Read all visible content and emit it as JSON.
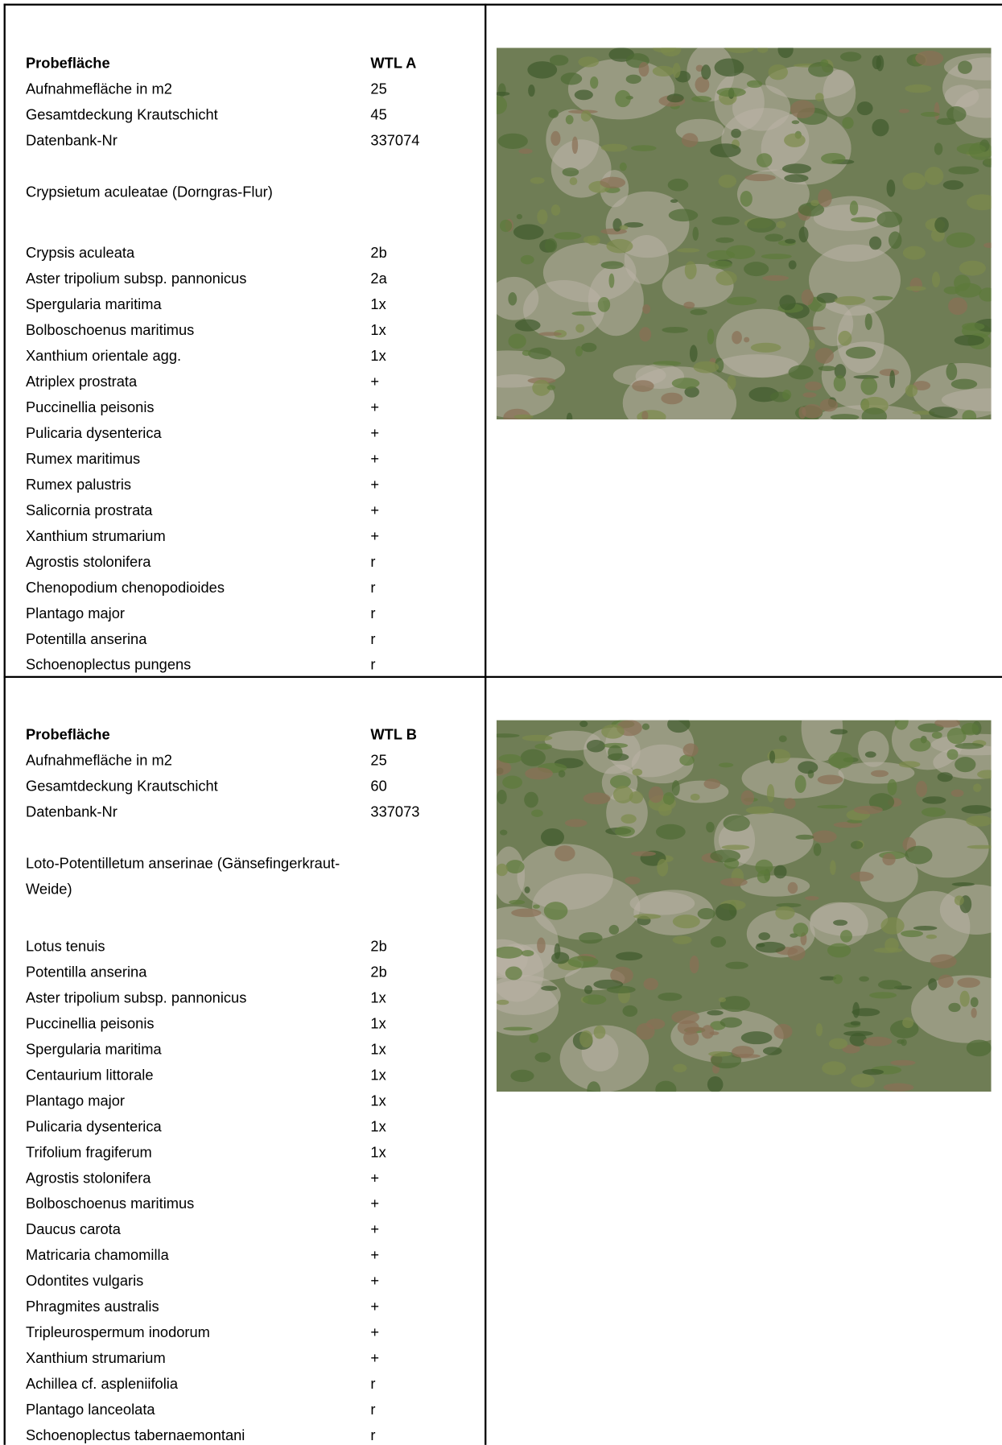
{
  "sections": [
    {
      "header": {
        "label": "Probefläche",
        "value": "WTL A"
      },
      "fields": [
        {
          "label": "Aufnahmefläche in m2",
          "value": "25"
        },
        {
          "label": "Gesamtdeckung Krautschicht",
          "value": "45"
        },
        {
          "label": "Datenbank-Nr",
          "value": "337074"
        }
      ],
      "community": "Crypsietum aculeatae (Dorngras-Flur)",
      "species": [
        {
          "name": "Crypsis aculeata",
          "cover": "2b"
        },
        {
          "name": "Aster tripolium subsp. pannonicus",
          "cover": "2a"
        },
        {
          "name": "Spergularia maritima",
          "cover": "1x"
        },
        {
          "name": "Bolboschoenus maritimus",
          "cover": "1x"
        },
        {
          "name": "Xanthium orientale agg.",
          "cover": "1x"
        },
        {
          "name": "Atriplex prostrata",
          "cover": "+"
        },
        {
          "name": "Puccinellia peisonis",
          "cover": "+"
        },
        {
          "name": "Pulicaria dysenterica",
          "cover": "+"
        },
        {
          "name": "Rumex maritimus",
          "cover": "+"
        },
        {
          "name": "Rumex palustris",
          "cover": "+"
        },
        {
          "name": "Salicornia prostrata",
          "cover": "+"
        },
        {
          "name": "Xanthium strumarium",
          "cover": "+"
        },
        {
          "name": "Agrostis stolonifera",
          "cover": "r"
        },
        {
          "name": "Chenopodium chenopodioides",
          "cover": "r"
        },
        {
          "name": "Plantago major",
          "cover": "r"
        },
        {
          "name": "Potentilla anserina",
          "cover": "r"
        },
        {
          "name": "Schoenoplectus pungens",
          "cover": "r"
        }
      ]
    },
    {
      "header": {
        "label": "Probefläche",
        "value": "WTL B"
      },
      "fields": [
        {
          "label": "Aufnahmefläche in m2",
          "value": "25"
        },
        {
          "label": "Gesamtdeckung Krautschicht",
          "value": "60"
        },
        {
          "label": "Datenbank-Nr",
          "value": "337073"
        }
      ],
      "community": "Loto-Potentilletum anserinae (Gänsefingerkraut-Weide)",
      "species": [
        {
          "name": "Lotus tenuis",
          "cover": "2b"
        },
        {
          "name": "Potentilla anserina",
          "cover": "2b"
        },
        {
          "name": "Aster tripolium subsp. pannonicus",
          "cover": "1x"
        },
        {
          "name": "Puccinellia peisonis",
          "cover": "1x"
        },
        {
          "name": "Spergularia maritima",
          "cover": "1x"
        },
        {
          "name": "Centaurium littorale",
          "cover": "1x"
        },
        {
          "name": "Plantago major",
          "cover": "1x"
        },
        {
          "name": "Pulicaria dysenterica",
          "cover": "1x"
        },
        {
          "name": "Trifolium fragiferum",
          "cover": "1x"
        },
        {
          "name": "Agrostis stolonifera",
          "cover": "+"
        },
        {
          "name": "Bolboschoenus maritimus",
          "cover": "+"
        },
        {
          "name": "Daucus carota",
          "cover": "+"
        },
        {
          "name": "Matricaria chamomilla",
          "cover": "+"
        },
        {
          "name": "Odontites vulgaris",
          "cover": "+"
        },
        {
          "name": "Phragmites australis",
          "cover": "+"
        },
        {
          "name": "Tripleurospermum inodorum",
          "cover": "+"
        },
        {
          "name": "Xanthium strumarium",
          "cover": "+"
        },
        {
          "name": "Achillea cf. aspleniifolia",
          "cover": "r"
        },
        {
          "name": "Plantago lanceolata",
          "cover": "r"
        },
        {
          "name": "Schoenoplectus tabernaemontani",
          "cover": "r"
        }
      ]
    }
  ]
}
